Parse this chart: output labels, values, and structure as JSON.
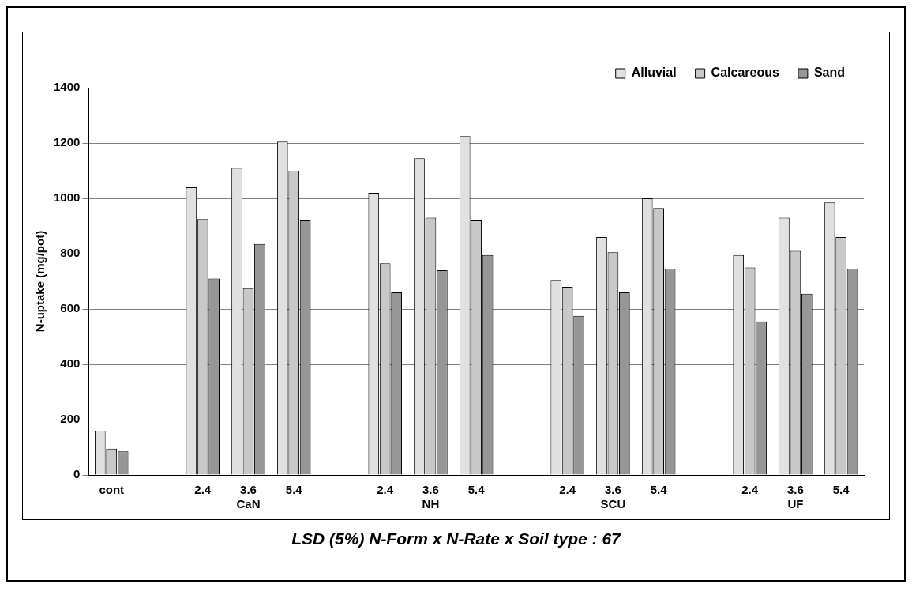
{
  "chart_data": {
    "type": "bar",
    "ylabel": "N-uptake (mg/pot)",
    "categories": [
      "cont",
      null,
      "2.4",
      "3.6\nCaN",
      "5.4",
      null,
      "2.4",
      "3.6\nNH",
      "5.4",
      null,
      "2.4",
      "3.6\nSCU",
      "5.4",
      null,
      "2.4",
      "3.6\nUF",
      "5.4"
    ],
    "series": [
      {
        "name": "Alluvial",
        "color": "#e0e0e0",
        "values": [
          160,
          null,
          1040,
          1110,
          1205,
          null,
          1020,
          1145,
          1225,
          null,
          705,
          860,
          1000,
          null,
          795,
          930,
          985
        ]
      },
      {
        "name": "Calcareous",
        "color": "#c8c8c8",
        "values": [
          95,
          null,
          925,
          675,
          1100,
          null,
          765,
          930,
          920,
          null,
          680,
          805,
          965,
          null,
          750,
          810,
          860
        ]
      },
      {
        "name": "Sand",
        "color": "#969696",
        "values": [
          85,
          null,
          710,
          835,
          920,
          null,
          660,
          740,
          795,
          null,
          575,
          660,
          745,
          null,
          555,
          655,
          745
        ]
      }
    ],
    "ylim": [
      0,
      1400
    ],
    "yticks": [
      0,
      200,
      400,
      600,
      800,
      1000,
      1200,
      1400
    ],
    "grid": "y",
    "legend": "top right",
    "annotations": [
      "LSD (5%) N-Form x N-Rate x Soil type : 67"
    ]
  }
}
